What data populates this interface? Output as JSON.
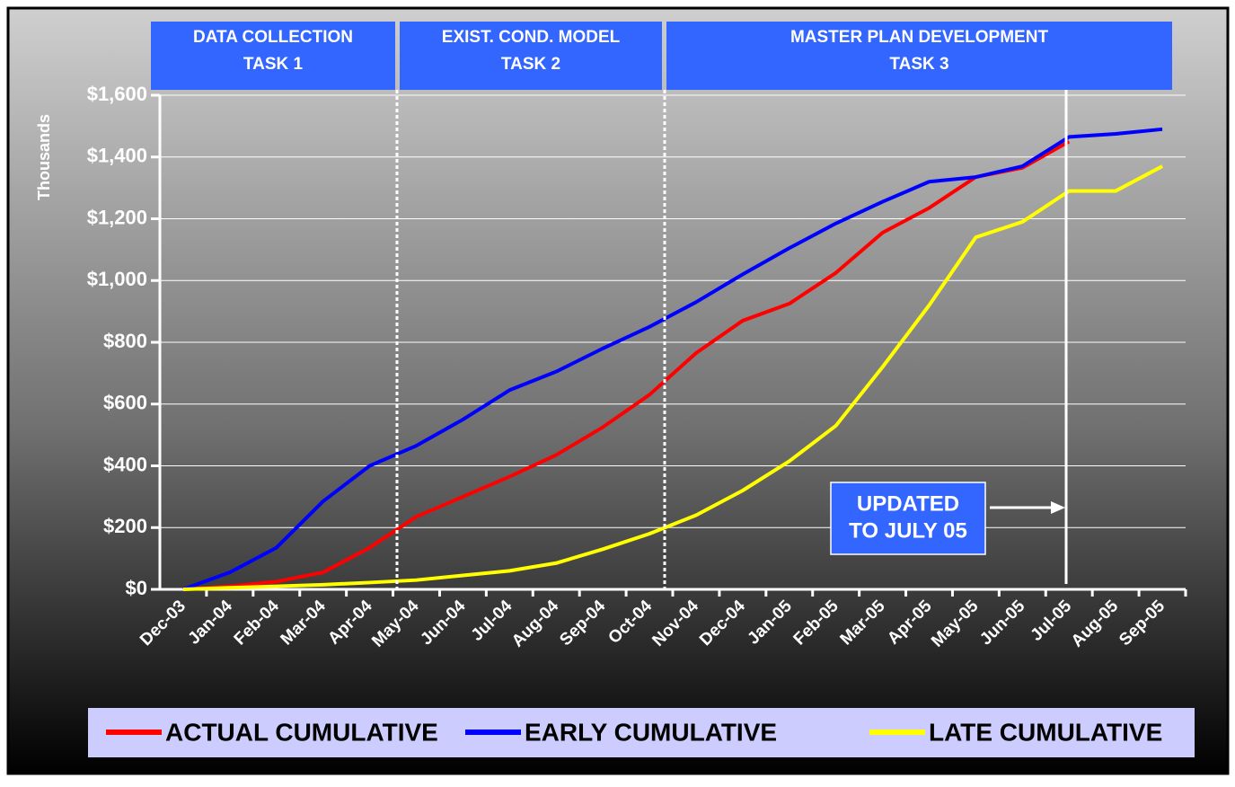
{
  "chart_data": {
    "type": "line",
    "y_axis_label": "Thousands",
    "tasks": [
      {
        "lines": [
          "DATA COLLECTION",
          "TASK 1"
        ]
      },
      {
        "lines": [
          "EXIST. COND. MODEL",
          "TASK 2"
        ]
      },
      {
        "lines": [
          "MASTER PLAN DEVELOPMENT",
          "TASK 3"
        ]
      }
    ],
    "annotation": [
      "UPDATED",
      "TO JULY 05"
    ],
    "categories": [
      "Dec-03",
      "Jan-04",
      "Feb-04",
      "Mar-04",
      "Apr-04",
      "May-04",
      "Jun-04",
      "Jul-04",
      "Aug-04",
      "Sep-04",
      "Oct-04",
      "Nov-04",
      "Dec-04",
      "Jan-05",
      "Feb-05",
      "Mar-05",
      "Apr-05",
      "May-05",
      "Jun-05",
      "Jul-05",
      "Aug-05",
      "Sep-05"
    ],
    "series": [
      {
        "name": "ACTUAL CUMULATIVE",
        "color": "#ff0000",
        "values": [
          0,
          10,
          25,
          55,
          135,
          235,
          300,
          365,
          435,
          525,
          630,
          765,
          870,
          925,
          1025,
          1155,
          1235,
          1335,
          1365,
          1450,
          null,
          null
        ]
      },
      {
        "name": "EARLY CUMULATIVE",
        "color": "#0000ff",
        "values": [
          0,
          55,
          135,
          285,
          400,
          465,
          550,
          645,
          705,
          780,
          850,
          930,
          1020,
          1105,
          1185,
          1255,
          1320,
          1335,
          1370,
          1465,
          1475,
          1490
        ]
      },
      {
        "name": "LATE CUMULATIVE",
        "color": "#ffff00",
        "values": [
          0,
          5,
          10,
          15,
          22,
          30,
          45,
          60,
          85,
          130,
          180,
          240,
          320,
          415,
          530,
          720,
          920,
          1140,
          1190,
          1290,
          1290,
          1370
        ]
      }
    ],
    "ylim": [
      0,
      1600
    ],
    "yticks": [
      {
        "value": 0,
        "label": "$0"
      },
      {
        "value": 200,
        "label": "$200"
      },
      {
        "value": 400,
        "label": "$400"
      },
      {
        "value": 600,
        "label": "$600"
      },
      {
        "value": 800,
        "label": "$800"
      },
      {
        "value": 1000,
        "label": "$1,000"
      },
      {
        "value": 1200,
        "label": "$1,200"
      },
      {
        "value": 1400,
        "label": "$1,400"
      },
      {
        "value": 1600,
        "label": "$1,600"
      }
    ],
    "grid": true
  }
}
